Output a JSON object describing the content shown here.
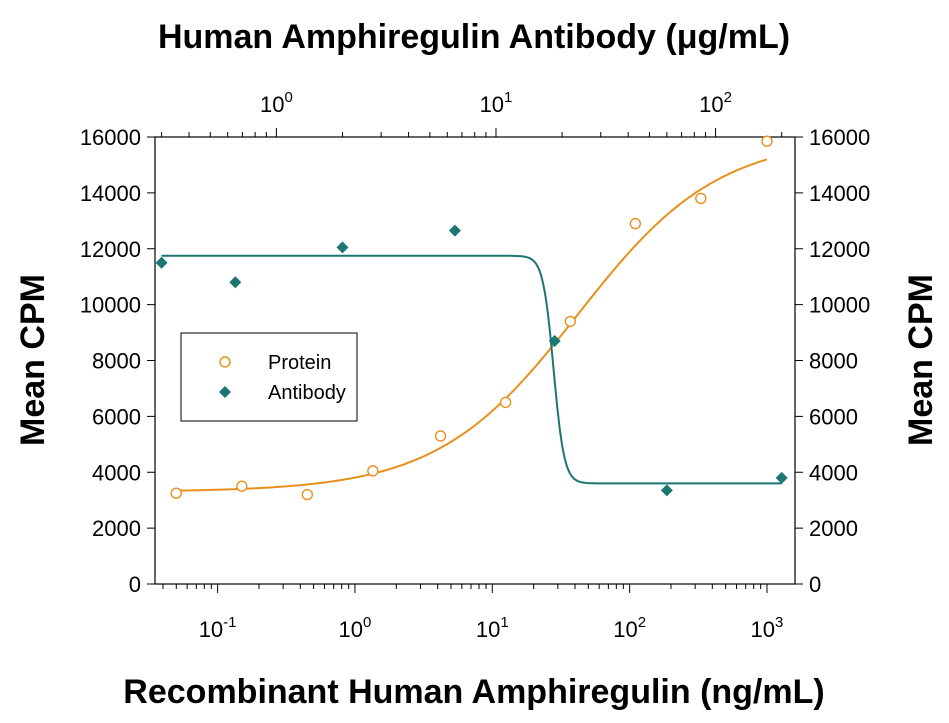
{
  "chart_data": {
    "type": "scatter",
    "title": "Human Amphiregulin Antibody (μg/mL)",
    "xlabel": "Recombinant Human Amphiregulin (ng/mL)",
    "ylabel": "Mean CPM",
    "y2label": "Mean CPM",
    "xscale": "log",
    "xlim": [
      0.035,
      1600
    ],
    "ylim": [
      0,
      16000
    ],
    "top_xscale": "log",
    "top_xlim": [
      0.28,
      230
    ],
    "grid": false,
    "legend_position": "middle-left",
    "x_ticks": [
      {
        "value": 0.1,
        "base": "10",
        "exp": "-1"
      },
      {
        "value": 1,
        "base": "10",
        "exp": "0"
      },
      {
        "value": 10,
        "base": "10",
        "exp": "1"
      },
      {
        "value": 100,
        "base": "10",
        "exp": "2"
      },
      {
        "value": 1000,
        "base": "10",
        "exp": "3"
      }
    ],
    "top_x_ticks": [
      {
        "value": 1,
        "base": "10",
        "exp": "0"
      },
      {
        "value": 10,
        "base": "10",
        "exp": "1"
      },
      {
        "value": 100,
        "base": "10",
        "exp": "2"
      }
    ],
    "y_ticks": [
      0,
      2000,
      4000,
      6000,
      8000,
      10000,
      12000,
      14000,
      16000
    ],
    "series": [
      {
        "name": "Protein",
        "axis": "bottom",
        "marker": "open-circle",
        "color": "#E8901C",
        "points": [
          {
            "x": 0.05,
            "y": 3250
          },
          {
            "x": 0.15,
            "y": 3500
          },
          {
            "x": 0.45,
            "y": 3200
          },
          {
            "x": 1.35,
            "y": 4050
          },
          {
            "x": 4.2,
            "y": 5300
          },
          {
            "x": 12.5,
            "y": 6500
          },
          {
            "x": 37,
            "y": 9400
          },
          {
            "x": 110,
            "y": 12900
          },
          {
            "x": 330,
            "y": 13800
          },
          {
            "x": 1000,
            "y": 15850
          }
        ],
        "fit": {
          "bottom": 3300,
          "top": 16000,
          "ec50": 42,
          "hill": 0.85
        }
      },
      {
        "name": "Antibody",
        "axis": "top",
        "marker": "filled-diamond",
        "color": "#1A7771",
        "points": [
          {
            "x": 0.3,
            "y": 11500
          },
          {
            "x": 0.65,
            "y": 10800
          },
          {
            "x": 2.0,
            "y": 12050
          },
          {
            "x": 6.5,
            "y": 12650
          },
          {
            "x": 18.5,
            "y": 8700
          },
          {
            "x": 60,
            "y": 3350
          },
          {
            "x": 200,
            "y": 3800
          }
        ],
        "fit": {
          "bottom": 3600,
          "top": 11750,
          "ic50": 18.3,
          "hill": 18
        }
      }
    ]
  }
}
